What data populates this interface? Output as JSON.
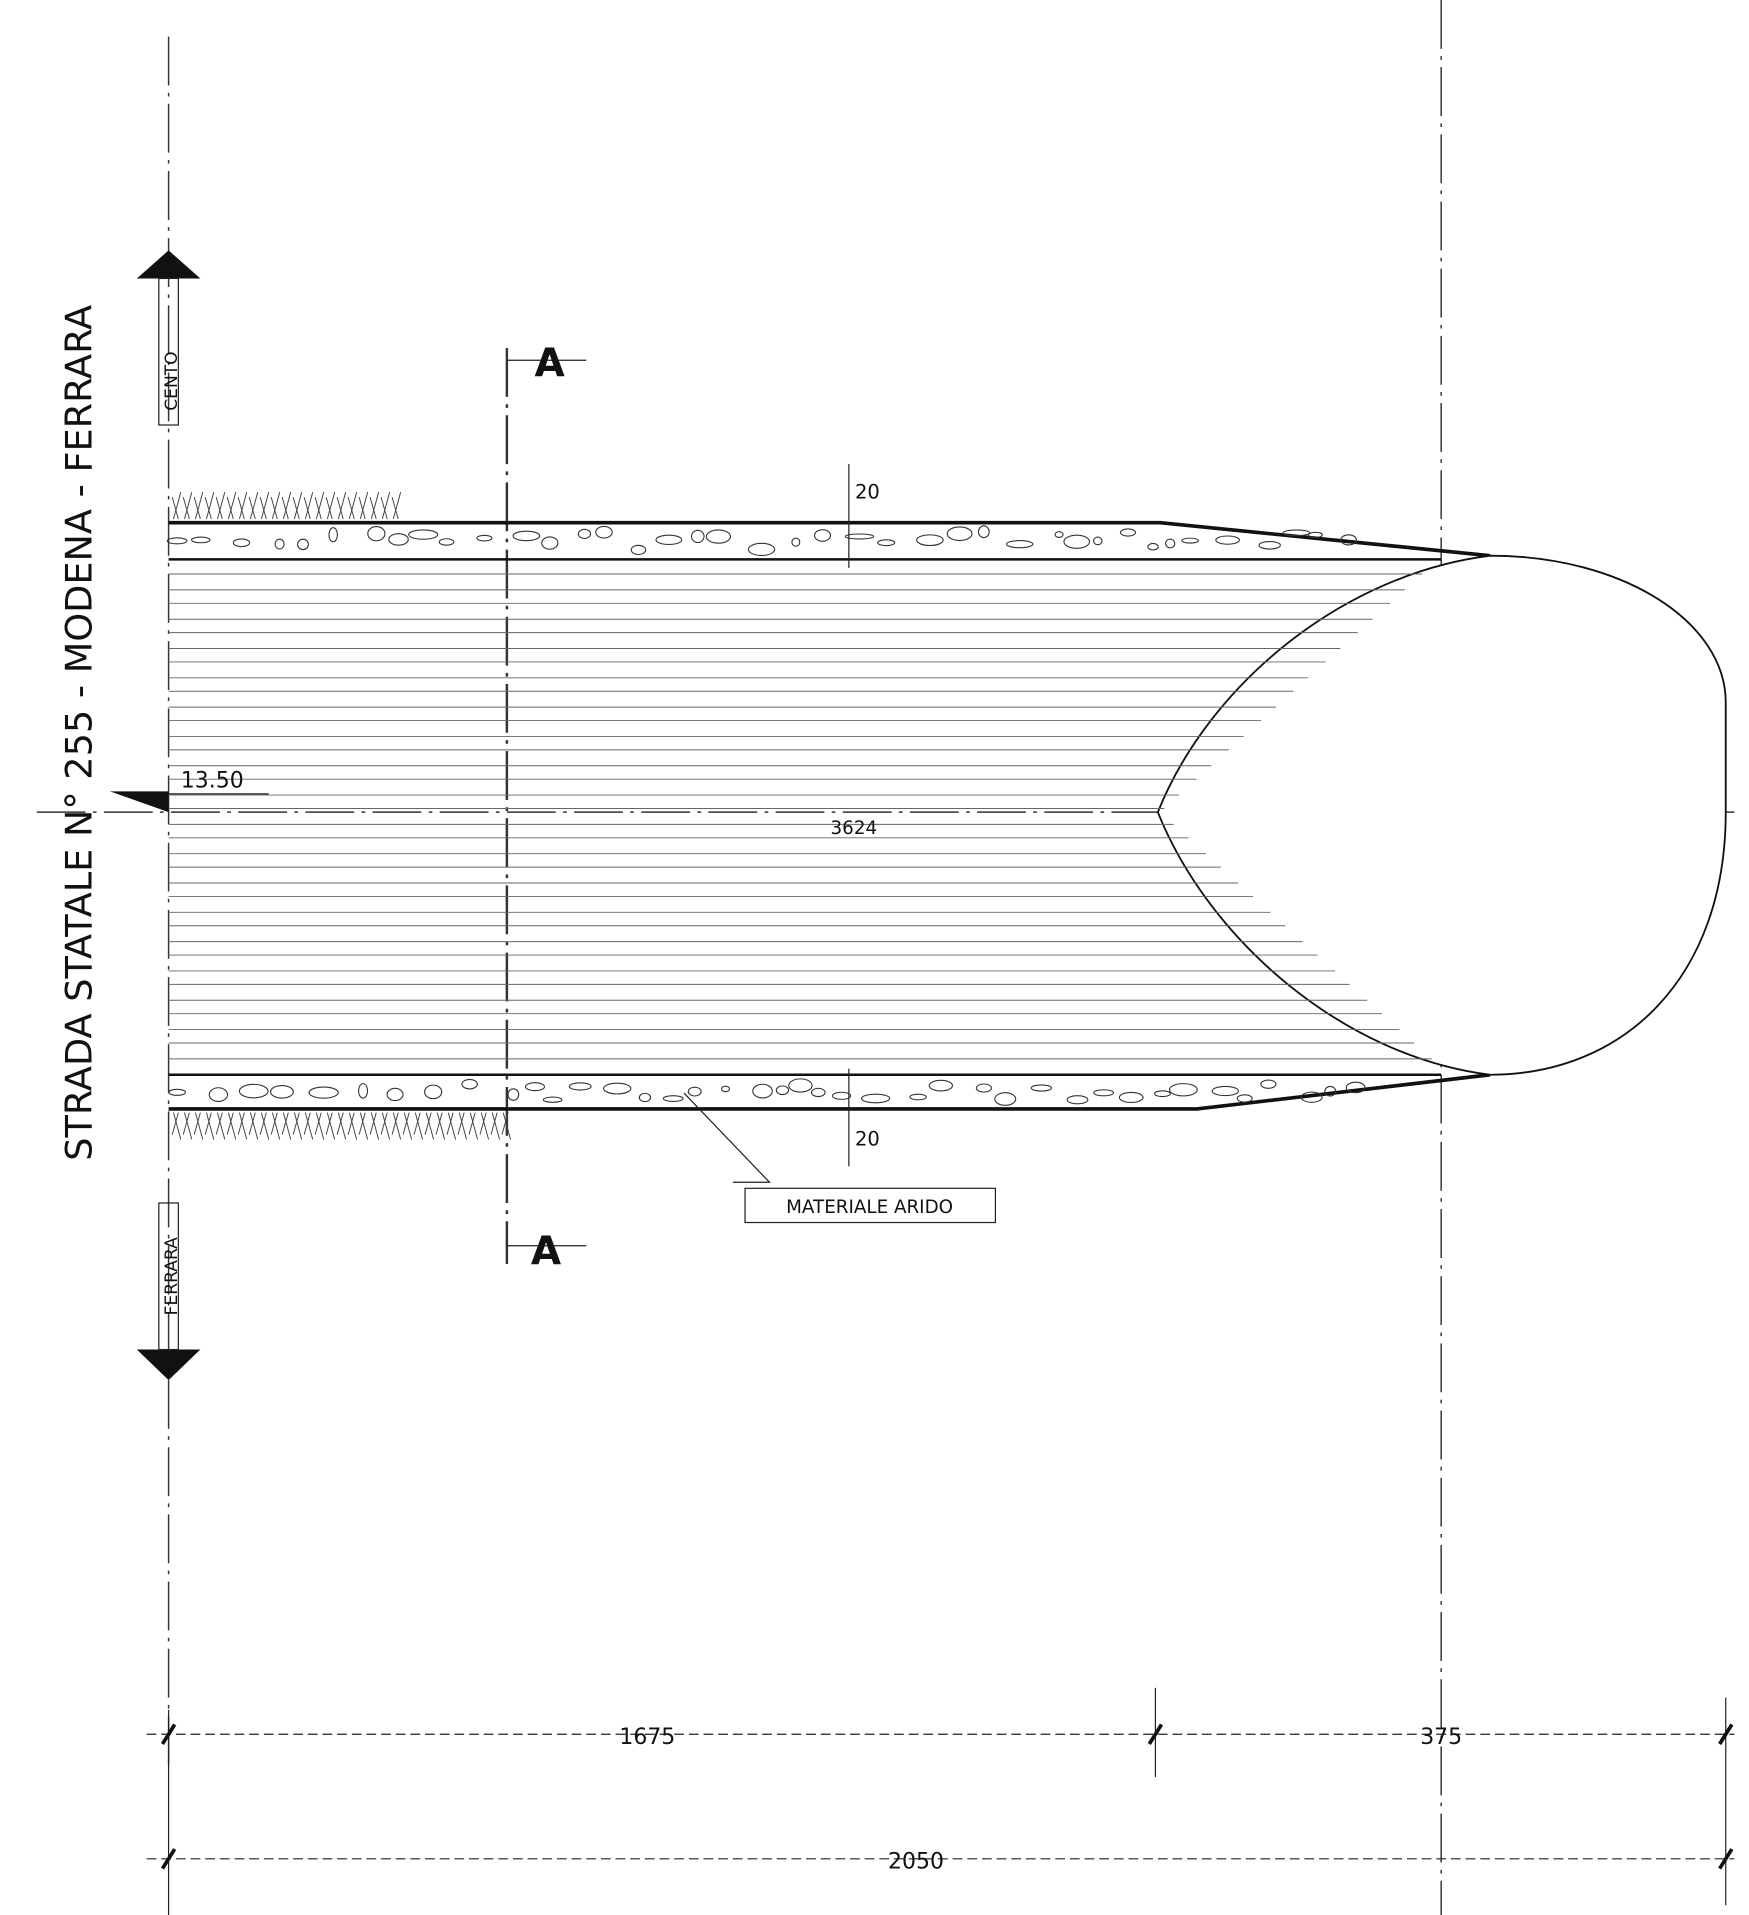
{
  "road_label": "STRADA STATALE N° 255 - MODENA - FERRARA",
  "directions": {
    "north": "CENTO",
    "south": "FERRARA"
  },
  "section_marks": [
    "A",
    "A"
  ],
  "dimensions": {
    "top_layer": "20",
    "bottom_layer": "20",
    "elevation": "13.50",
    "center_label": "3624",
    "segment_1": "1675",
    "segment_2": "375",
    "total": "2050"
  },
  "annotations": {
    "material": "MATERIALE ARIDO"
  }
}
